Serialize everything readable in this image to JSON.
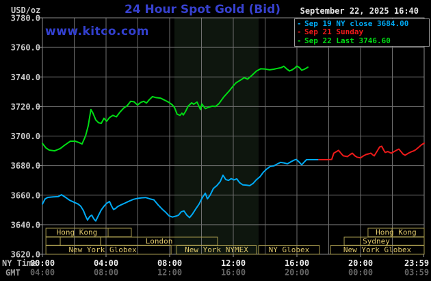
{
  "header": {
    "unit_label": "USD/oz",
    "title": "24 Hour Spot Gold (Bid)",
    "datetime": "September 22, 2025 16:40",
    "watermark": "www.kitco.com"
  },
  "legend": {
    "items": [
      {
        "dash": "-",
        "label": "Sep 19 NY close 3684.00",
        "color": "#00aaf5"
      },
      {
        "dash": "-",
        "label": "Sep 21 Sunday",
        "color": "#ee1a1a"
      },
      {
        "dash": "-",
        "label": "Sep 22 Last 3746.60",
        "color": "#00dc14"
      }
    ]
  },
  "axes": {
    "ny_time_label": "NY Time",
    "gmt_label": "GMT"
  },
  "chart_data": {
    "type": "line",
    "title": "24 Hour Spot Gold (Bid)",
    "ylabel": "USD/oz",
    "ylim": [
      3620,
      3780
    ],
    "y_tick_step": 20,
    "y_ticks": [
      "3620.0",
      "3640.0",
      "3660.0",
      "3680.0",
      "3700.0",
      "3720.0",
      "3740.0",
      "3760.0",
      "3780.0"
    ],
    "x_hours_range": [
      0,
      24
    ],
    "x_gridline_step_hours": 2,
    "x_ticks": [
      {
        "ny": "00:00",
        "gmt": "04:00",
        "hour": 0
      },
      {
        "ny": "04:00",
        "gmt": "08:00",
        "hour": 4
      },
      {
        "ny": "08:00",
        "gmt": "12:00",
        "hour": 8
      },
      {
        "ny": "12:00",
        "gmt": "16:00",
        "hour": 12
      },
      {
        "ny": "16:00",
        "gmt": "20:00",
        "hour": 16
      },
      {
        "ny": "20:00",
        "gmt": "00:00",
        "hour": 20
      },
      {
        "ny": "23:59",
        "gmt": "03:59",
        "hour": 23.98
      }
    ],
    "nymex_band_hours": [
      8.3,
      13.59
    ],
    "grid_color": "#6f6f6f",
    "band_color": "#0e160e",
    "session_border_color": "#a89b4f",
    "session_text_color": "#dcc56a",
    "series": [
      {
        "name": "Sep 19 NY close",
        "close_value": 3684.0,
        "color": "#00aaf5",
        "points": [
          [
            0,
            3654
          ],
          [
            0.17,
            3657.5
          ],
          [
            0.34,
            3658.5
          ],
          [
            0.69,
            3658.8
          ],
          [
            0.99,
            3659
          ],
          [
            1.2,
            3660.3
          ],
          [
            1.46,
            3658.5
          ],
          [
            1.72,
            3656.5
          ],
          [
            1.98,
            3655.3
          ],
          [
            2.24,
            3654
          ],
          [
            2.41,
            3652.5
          ],
          [
            2.58,
            3649.5
          ],
          [
            2.71,
            3646
          ],
          [
            2.84,
            3643.2
          ],
          [
            2.97,
            3645.5
          ],
          [
            3.1,
            3646.5
          ],
          [
            3.23,
            3644
          ],
          [
            3.35,
            3642.5
          ],
          [
            3.53,
            3646.5
          ],
          [
            3.7,
            3650
          ],
          [
            3.87,
            3652.5
          ],
          [
            4.04,
            3654.5
          ],
          [
            4.22,
            3655.7
          ],
          [
            4.34,
            3652.8
          ],
          [
            4.47,
            3650.3
          ],
          [
            4.6,
            3651
          ],
          [
            4.73,
            3652.3
          ],
          [
            4.95,
            3653.5
          ],
          [
            5.16,
            3654.5
          ],
          [
            5.42,
            3655.8
          ],
          [
            5.72,
            3657.2
          ],
          [
            5.98,
            3657.8
          ],
          [
            6.24,
            3658.2
          ],
          [
            6.49,
            3658.4
          ],
          [
            6.75,
            3657.5
          ],
          [
            7.01,
            3656.8
          ],
          [
            7.27,
            3653.5
          ],
          [
            7.53,
            3650.5
          ],
          [
            7.74,
            3648.5
          ],
          [
            7.96,
            3646
          ],
          [
            8.17,
            3645.2
          ],
          [
            8.39,
            3645.8
          ],
          [
            8.56,
            3646.5
          ],
          [
            8.73,
            3648.8
          ],
          [
            8.9,
            3649.3
          ],
          [
            9.08,
            3646.5
          ],
          [
            9.25,
            3644.8
          ],
          [
            9.42,
            3647
          ],
          [
            9.63,
            3650.5
          ],
          [
            9.85,
            3654
          ],
          [
            10.06,
            3658.5
          ],
          [
            10.24,
            3661.3
          ],
          [
            10.37,
            3657.5
          ],
          [
            10.54,
            3660
          ],
          [
            10.75,
            3664.5
          ],
          [
            10.97,
            3666.5
          ],
          [
            11.18,
            3669.2
          ],
          [
            11.35,
            3673.5
          ],
          [
            11.53,
            3670.5
          ],
          [
            11.7,
            3670
          ],
          [
            11.87,
            3671.2
          ],
          [
            12.04,
            3670.3
          ],
          [
            12.22,
            3671
          ],
          [
            12.39,
            3668.5
          ],
          [
            12.6,
            3667
          ],
          [
            12.82,
            3666.8
          ],
          [
            13.03,
            3666.4
          ],
          [
            13.25,
            3668
          ],
          [
            13.46,
            3670.5
          ],
          [
            13.68,
            3672.5
          ],
          [
            13.89,
            3675.5
          ],
          [
            14.11,
            3677.8
          ],
          [
            14.32,
            3679.4
          ],
          [
            14.54,
            3679.8
          ],
          [
            14.75,
            3681
          ],
          [
            14.97,
            3682.2
          ],
          [
            15.18,
            3681.8
          ],
          [
            15.4,
            3681.2
          ],
          [
            15.61,
            3682.5
          ],
          [
            15.83,
            3683.7
          ],
          [
            15.96,
            3684.2
          ],
          [
            16.13,
            3682.5
          ],
          [
            16.3,
            3680.5
          ],
          [
            16.47,
            3682.5
          ],
          [
            16.6,
            3684
          ],
          [
            16.9,
            3684
          ],
          [
            17.33,
            3684
          ]
        ]
      },
      {
        "name": "Sep 21 Sunday",
        "color": "#ee1a1a",
        "points": [
          [
            17.38,
            3684
          ],
          [
            17.89,
            3684
          ],
          [
            18.19,
            3684.2
          ],
          [
            18.32,
            3688.4
          ],
          [
            18.49,
            3689.5
          ],
          [
            18.62,
            3690.3
          ],
          [
            18.8,
            3688
          ],
          [
            18.92,
            3686.6
          ],
          [
            19.18,
            3686.1
          ],
          [
            19.35,
            3687.5
          ],
          [
            19.48,
            3688.4
          ],
          [
            19.66,
            3686.5
          ],
          [
            19.78,
            3685.7
          ],
          [
            20,
            3685.2
          ],
          [
            20.17,
            3686.5
          ],
          [
            20.34,
            3687.5
          ],
          [
            20.52,
            3688
          ],
          [
            20.65,
            3688.4
          ],
          [
            20.77,
            3687.3
          ],
          [
            20.86,
            3686.6
          ],
          [
            21.03,
            3689.5
          ],
          [
            21.2,
            3692.6
          ],
          [
            21.33,
            3693.1
          ],
          [
            21.46,
            3690.5
          ],
          [
            21.55,
            3688.9
          ],
          [
            21.72,
            3689.5
          ],
          [
            21.85,
            3688.8
          ],
          [
            21.94,
            3688.4
          ],
          [
            22.11,
            3689.5
          ],
          [
            22.28,
            3690.5
          ],
          [
            22.41,
            3691.2
          ],
          [
            22.54,
            3689.5
          ],
          [
            22.67,
            3687.8
          ],
          [
            22.8,
            3687
          ],
          [
            22.92,
            3687.8
          ],
          [
            23.01,
            3688.4
          ],
          [
            23.18,
            3689.3
          ],
          [
            23.35,
            3690
          ],
          [
            23.48,
            3690.8
          ],
          [
            23.66,
            3692.5
          ],
          [
            23.83,
            3694
          ],
          [
            24,
            3695.2
          ]
        ]
      },
      {
        "name": "Sep 22 Last",
        "last_value": 3746.6,
        "color": "#00dc14",
        "points": [
          [
            0,
            3695
          ],
          [
            0.22,
            3692
          ],
          [
            0.43,
            3690.5
          ],
          [
            0.77,
            3690
          ],
          [
            1.12,
            3691.5
          ],
          [
            1.42,
            3694
          ],
          [
            1.76,
            3696.5
          ],
          [
            2.06,
            3696.5
          ],
          [
            2.32,
            3695.5
          ],
          [
            2.49,
            3694.6
          ],
          [
            2.71,
            3700
          ],
          [
            2.88,
            3707
          ],
          [
            3.05,
            3718
          ],
          [
            3.18,
            3715.5
          ],
          [
            3.35,
            3711
          ],
          [
            3.53,
            3709
          ],
          [
            3.7,
            3708.6
          ],
          [
            3.87,
            3712
          ],
          [
            4.04,
            3710
          ],
          [
            4.22,
            3712.5
          ],
          [
            4.43,
            3714
          ],
          [
            4.65,
            3713
          ],
          [
            4.9,
            3716.5
          ],
          [
            5.12,
            3719
          ],
          [
            5.33,
            3720.5
          ],
          [
            5.55,
            3723.5
          ],
          [
            5.76,
            3723.2
          ],
          [
            5.98,
            3721
          ],
          [
            6.19,
            3722.8
          ],
          [
            6.37,
            3723.5
          ],
          [
            6.54,
            3722.3
          ],
          [
            6.71,
            3724.5
          ],
          [
            6.92,
            3726.7
          ],
          [
            7.14,
            3726
          ],
          [
            7.44,
            3725.6
          ],
          [
            7.74,
            3724
          ],
          [
            8,
            3722.5
          ],
          [
            8.17,
            3721
          ],
          [
            8.3,
            3719.4
          ],
          [
            8.47,
            3714.8
          ],
          [
            8.65,
            3714
          ],
          [
            8.77,
            3715.5
          ],
          [
            8.86,
            3714.3
          ],
          [
            8.99,
            3716.5
          ],
          [
            9.16,
            3720.2
          ],
          [
            9.38,
            3722.5
          ],
          [
            9.51,
            3721.5
          ],
          [
            9.72,
            3723
          ],
          [
            9.94,
            3717.9
          ],
          [
            10.02,
            3721.7
          ],
          [
            10.24,
            3718.6
          ],
          [
            10.45,
            3719.5
          ],
          [
            10.67,
            3720.2
          ],
          [
            10.88,
            3720
          ],
          [
            11.1,
            3722
          ],
          [
            11.4,
            3726.5
          ],
          [
            11.74,
            3730.5
          ],
          [
            12,
            3734
          ],
          [
            12.17,
            3736
          ],
          [
            12.47,
            3738
          ],
          [
            12.69,
            3739.5
          ],
          [
            12.9,
            3738.5
          ],
          [
            13.16,
            3741
          ],
          [
            13.46,
            3744
          ],
          [
            13.72,
            3745.5
          ],
          [
            14.02,
            3745.3
          ],
          [
            14.28,
            3744.8
          ],
          [
            14.54,
            3745.2
          ],
          [
            14.8,
            3745.8
          ],
          [
            15.01,
            3746.3
          ],
          [
            15.18,
            3747.2
          ],
          [
            15.35,
            3745.5
          ],
          [
            15.53,
            3744
          ],
          [
            15.7,
            3744.8
          ],
          [
            15.87,
            3746
          ],
          [
            16,
            3747.4
          ],
          [
            16.17,
            3746.2
          ],
          [
            16.3,
            3744.5
          ],
          [
            16.47,
            3745.2
          ],
          [
            16.6,
            3746
          ],
          [
            16.69,
            3746.6
          ]
        ]
      }
    ],
    "sessions": [
      {
        "row": 1,
        "label": "Hong Kong",
        "h1": 0.22,
        "h2": 5.59,
        "dividers": [
          4.13
        ],
        "label_center_h": 2.17
      },
      {
        "row": 1,
        "label": "Hong Kong",
        "h1": 20.47,
        "h2": 24,
        "dividers": [
          21.98
        ]
      },
      {
        "row": 2,
        "label": "",
        "h1": 0.22,
        "h2": 1.12
      },
      {
        "row": 2,
        "label": "",
        "h1": 1.12,
        "h2": 3.66
      },
      {
        "row": 2,
        "label": "London",
        "h1": 3.66,
        "h2": 11.01
      },
      {
        "row": 2,
        "label": "",
        "h1": 18.97,
        "h2": 20
      },
      {
        "row": 2,
        "label": "Sydney",
        "h1": 20,
        "h2": 24,
        "label_center_h": 20.99
      },
      {
        "row": 3,
        "label": "New York Globex",
        "h1": 0.22,
        "h2": 8.09,
        "label_center_h": 3.79
      },
      {
        "row": 3,
        "label": "New York NYMEX",
        "h1": 8.43,
        "h2": 13.46
      },
      {
        "row": 3,
        "label": "NY Globex",
        "h1": 13.59,
        "h2": 17.42
      },
      {
        "row": 3,
        "label": "New York Globex",
        "h1": 18.11,
        "h2": 24
      }
    ]
  }
}
